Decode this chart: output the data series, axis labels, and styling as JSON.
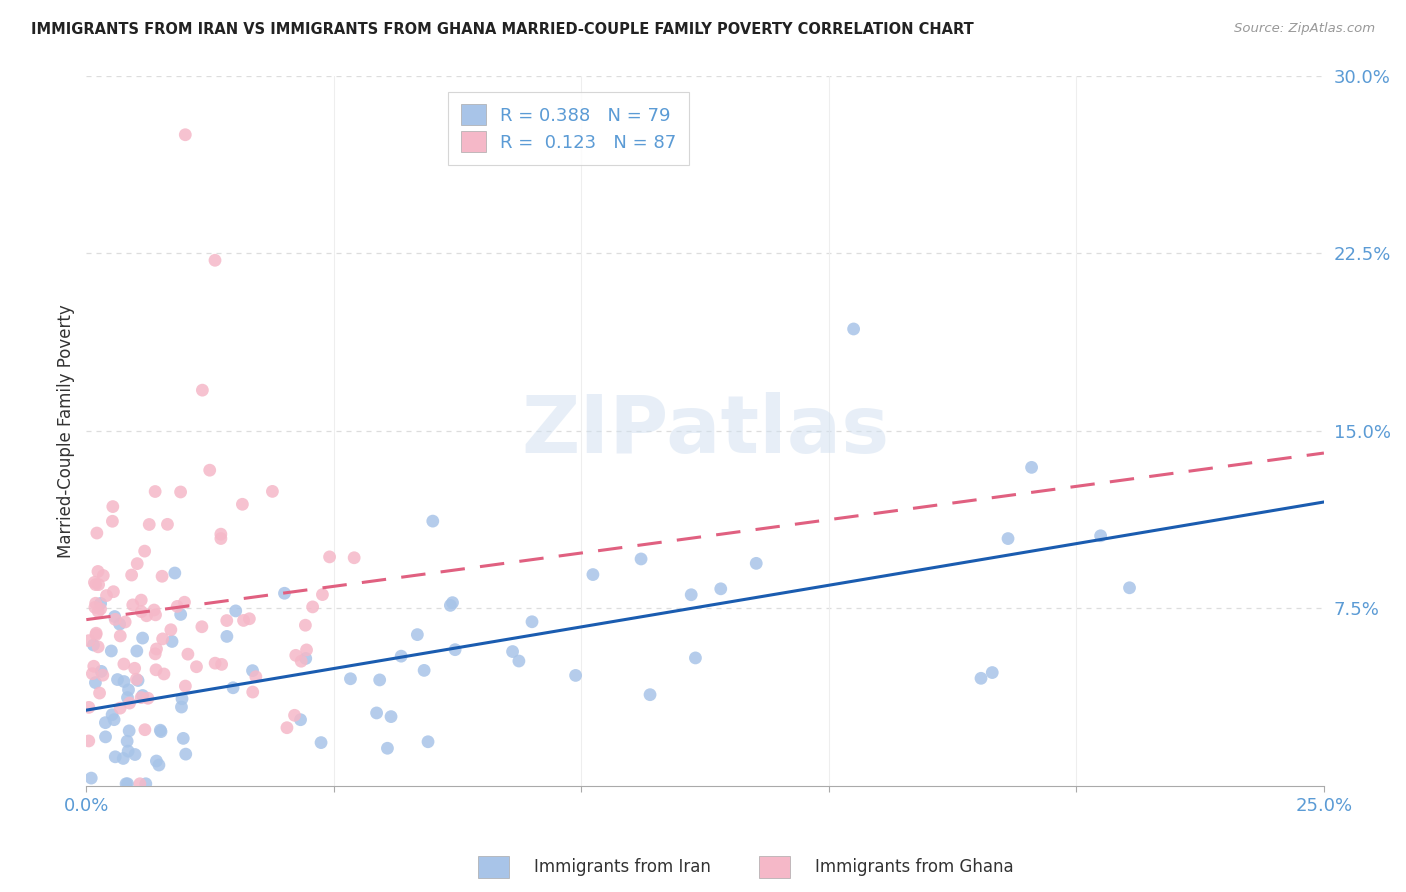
{
  "title": "IMMIGRANTS FROM IRAN VS IMMIGRANTS FROM GHANA MARRIED-COUPLE FAMILY POVERTY CORRELATION CHART",
  "source": "Source: ZipAtlas.com",
  "ylabel": "Married-Couple Family Poverty",
  "xlim": [
    0.0,
    0.25
  ],
  "ylim": [
    0.0,
    0.3
  ],
  "iran_color": "#a8c4e8",
  "ghana_color": "#f5b8c8",
  "iran_line_color": "#1a5cb0",
  "ghana_line_color": "#e06080",
  "iran_R": 0.388,
  "iran_N": 79,
  "ghana_R": 0.123,
  "ghana_N": 87,
  "legend_label_iran": "Immigrants from Iran",
  "legend_label_ghana": "Immigrants from Ghana",
  "watermark": "ZIPatlas",
  "background_color": "#ffffff",
  "grid_color": "#cccccc",
  "title_color": "#222222",
  "source_color": "#999999",
  "axis_label_color": "#333333",
  "tick_color": "#5b9bd5",
  "legend_text_color": "#5b9bd5"
}
